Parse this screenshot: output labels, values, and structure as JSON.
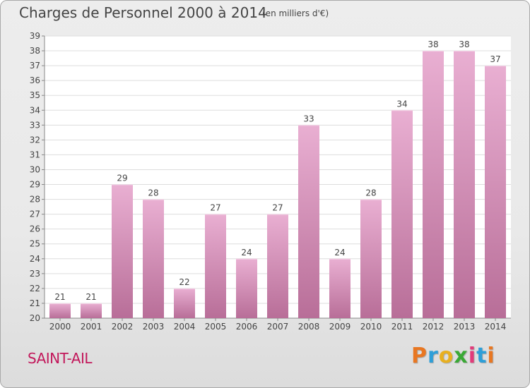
{
  "title": "Charges de Personnel 2000 à 2014",
  "subtitle": "(en milliers d'€)",
  "commune": "SAINT-AIL",
  "logo": {
    "text": "Proxiti",
    "letter_colors": [
      "#e87722",
      "#2e9fd8",
      "#e8b020",
      "#3aa935",
      "#e23b7a",
      "#2e9fd8",
      "#e87722"
    ]
  },
  "colors": {
    "bar_light": "#e9afd2",
    "bar_dark": "#b86e98",
    "plot_bg": "#ffffff",
    "grid": "#dddddd"
  },
  "chart_data": {
    "type": "bar",
    "title": "Charges de Personnel 2000 à 2014",
    "subtitle": "(en milliers d'€)",
    "xlabel": "",
    "ylabel": "",
    "ylim": [
      20,
      39
    ],
    "yticks": [
      20,
      21,
      22,
      23,
      24,
      25,
      26,
      27,
      28,
      29,
      30,
      31,
      32,
      33,
      34,
      35,
      36,
      37,
      38,
      39
    ],
    "grid": true,
    "categories": [
      "2000",
      "2001",
      "2002",
      "2003",
      "2004",
      "2005",
      "2006",
      "2007",
      "2008",
      "2009",
      "2010",
      "2011",
      "2012",
      "2013",
      "2014"
    ],
    "values": [
      21,
      21,
      29,
      28,
      22,
      27,
      24,
      27,
      33,
      24,
      28,
      34,
      38,
      38,
      37
    ],
    "data_labels": [
      "21",
      "21",
      "29",
      "28",
      "22",
      "27",
      "24",
      "27",
      "33",
      "24",
      "28",
      "34",
      "38",
      "38",
      "37"
    ]
  }
}
